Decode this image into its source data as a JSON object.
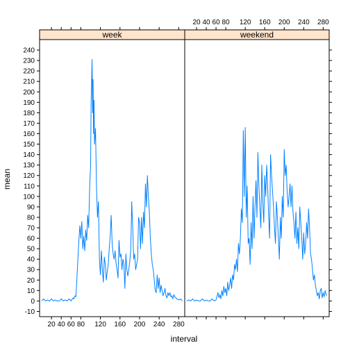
{
  "chart_data": {
    "type": "line",
    "layout": "two side-by-side panels sharing the y axis",
    "xlabel": "interval",
    "ylabel": "mean",
    "ylim": [
      -15,
      250
    ],
    "xlim": [
      0,
      288
    ],
    "x_ticks": [
      20,
      40,
      60,
      80,
      120,
      160,
      200,
      240,
      280
    ],
    "y_ticks": [
      -10,
      0,
      10,
      20,
      30,
      40,
      50,
      60,
      70,
      80,
      90,
      100,
      110,
      120,
      130,
      140,
      150,
      160,
      170,
      180,
      190,
      200,
      210,
      220,
      230,
      240
    ],
    "grid": false,
    "colors": {
      "line": "#0080ff",
      "strip": "#ffe5cc"
    },
    "panels": [
      {
        "name": "week",
        "x": [
          0,
          4,
          8,
          12,
          16,
          20,
          24,
          28,
          32,
          36,
          40,
          44,
          48,
          52,
          56,
          60,
          64,
          66,
          68,
          70,
          72,
          74,
          76,
          78,
          80,
          82,
          84,
          86,
          88,
          90,
          92,
          94,
          96,
          98,
          100,
          101,
          102,
          103,
          104,
          105,
          106,
          107,
          108,
          110,
          112,
          114,
          116,
          118,
          120,
          122,
          124,
          126,
          128,
          130,
          132,
          134,
          136,
          138,
          140,
          142,
          144,
          146,
          148,
          150,
          152,
          154,
          156,
          158,
          160,
          162,
          164,
          166,
          168,
          170,
          172,
          174,
          176,
          178,
          180,
          182,
          184,
          186,
          188,
          190,
          192,
          194,
          196,
          198,
          200,
          202,
          204,
          206,
          208,
          210,
          212,
          214,
          216,
          218,
          220,
          222,
          224,
          226,
          228,
          230,
          232,
          234,
          236,
          238,
          240,
          242,
          244,
          246,
          248,
          250,
          252,
          254,
          256,
          258,
          260,
          262,
          264,
          266,
          268,
          270,
          272,
          276,
          280,
          284,
          287
        ],
        "values": [
          0,
          2,
          0,
          1,
          0,
          2,
          0,
          1,
          0,
          0,
          2,
          0,
          1,
          0,
          2,
          0,
          3,
          2,
          5,
          4,
          22,
          40,
          58,
          72,
          60,
          76,
          50,
          62,
          48,
          68,
          58,
          82,
          70,
          108,
          130,
          190,
          210,
          231,
          180,
          212,
          160,
          192,
          150,
          165,
          110,
          80,
          95,
          40,
          25,
          48,
          30,
          18,
          42,
          35,
          20,
          28,
          35,
          50,
          62,
          82,
          55,
          45,
          40,
          48,
          36,
          30,
          22,
          58,
          42,
          45,
          30,
          40,
          35,
          12,
          45,
          30,
          24,
          30,
          38,
          48,
          95,
          70,
          40,
          45,
          30,
          35,
          40,
          80,
          75,
          50,
          80,
          55,
          85,
          70,
          112,
          90,
          120,
          100,
          85,
          60,
          45,
          35,
          30,
          20,
          10,
          8,
          25,
          12,
          22,
          8,
          15,
          10,
          5,
          8,
          12,
          5,
          3,
          8,
          5,
          8,
          4,
          5,
          2,
          6,
          4,
          2,
          1,
          2,
          0
        ]
      },
      {
        "name": "weekend",
        "x": [
          0,
          4,
          8,
          12,
          16,
          20,
          24,
          28,
          32,
          36,
          40,
          44,
          48,
          52,
          56,
          60,
          64,
          66,
          68,
          70,
          72,
          74,
          76,
          78,
          80,
          82,
          84,
          86,
          88,
          90,
          92,
          94,
          96,
          98,
          100,
          102,
          104,
          106,
          108,
          110,
          112,
          114,
          116,
          118,
          120,
          122,
          124,
          126,
          128,
          130,
          132,
          134,
          136,
          138,
          140,
          142,
          144,
          146,
          148,
          150,
          152,
          154,
          156,
          158,
          160,
          162,
          164,
          166,
          168,
          170,
          172,
          174,
          176,
          178,
          180,
          182,
          184,
          186,
          188,
          190,
          192,
          194,
          196,
          198,
          200,
          202,
          204,
          206,
          208,
          210,
          212,
          214,
          216,
          218,
          220,
          222,
          224,
          226,
          228,
          230,
          232,
          234,
          236,
          238,
          240,
          242,
          244,
          246,
          248,
          250,
          252,
          254,
          256,
          258,
          260,
          262,
          264,
          266,
          268,
          270,
          272,
          274,
          276,
          278,
          280,
          282,
          284,
          287
        ],
        "values": [
          0,
          1,
          0,
          2,
          0,
          1,
          0,
          0,
          2,
          0,
          1,
          0,
          0,
          2,
          0,
          1,
          8,
          3,
          6,
          2,
          10,
          5,
          14,
          8,
          12,
          5,
          18,
          10,
          15,
          22,
          12,
          25,
          20,
          35,
          30,
          40,
          28,
          55,
          45,
          60,
          88,
          75,
          163,
          100,
          166,
          80,
          110,
          55,
          60,
          35,
          75,
          50,
          100,
          60,
          90,
          115,
          80,
          142,
          110,
          90,
          70,
          130,
          95,
          75,
          120,
          100,
          130,
          110,
          80,
          60,
          140,
          120,
          105,
          90,
          70,
          55,
          95,
          80,
          60,
          40,
          80,
          60,
          100,
          80,
          145,
          120,
          130,
          105,
          90,
          100,
          112,
          90,
          110,
          85,
          75,
          60,
          85,
          55,
          70,
          50,
          90,
          75,
          60,
          40,
          65,
          45,
          55,
          75,
          60,
          88,
          70,
          45,
          40,
          30,
          20,
          25,
          15,
          10,
          5,
          8,
          2,
          10,
          12,
          3,
          8,
          4,
          10,
          5
        ]
      }
    ]
  }
}
